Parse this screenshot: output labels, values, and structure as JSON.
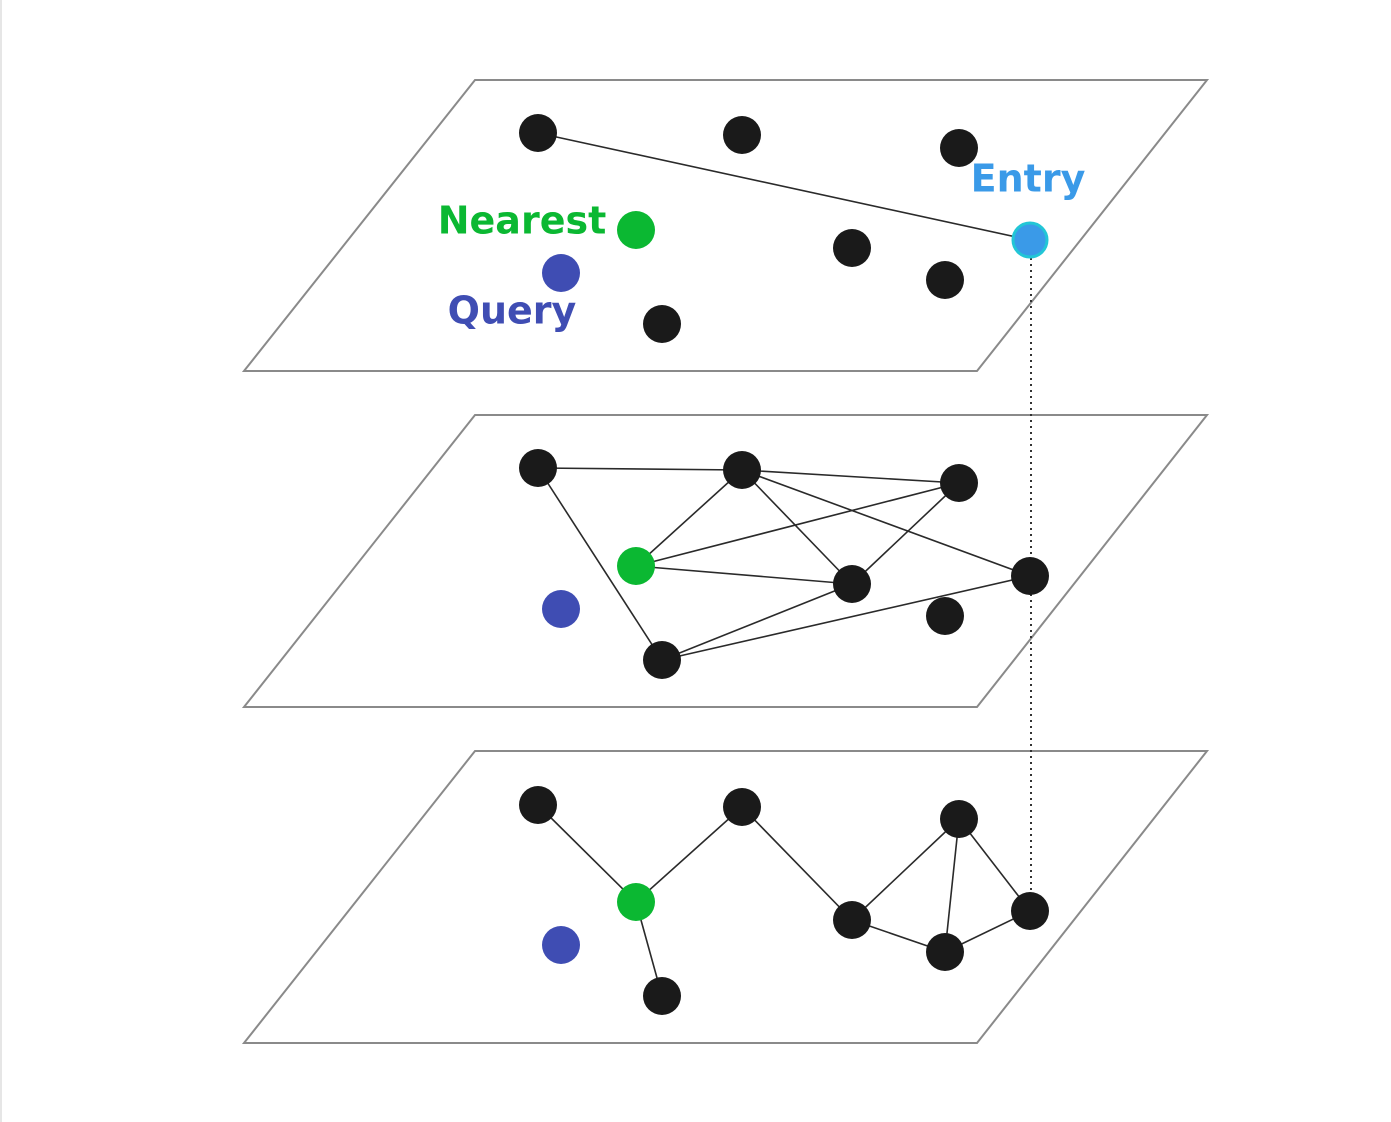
{
  "labels": {
    "entry": "Entry",
    "nearest": "Nearest",
    "query": "Query"
  }
}
